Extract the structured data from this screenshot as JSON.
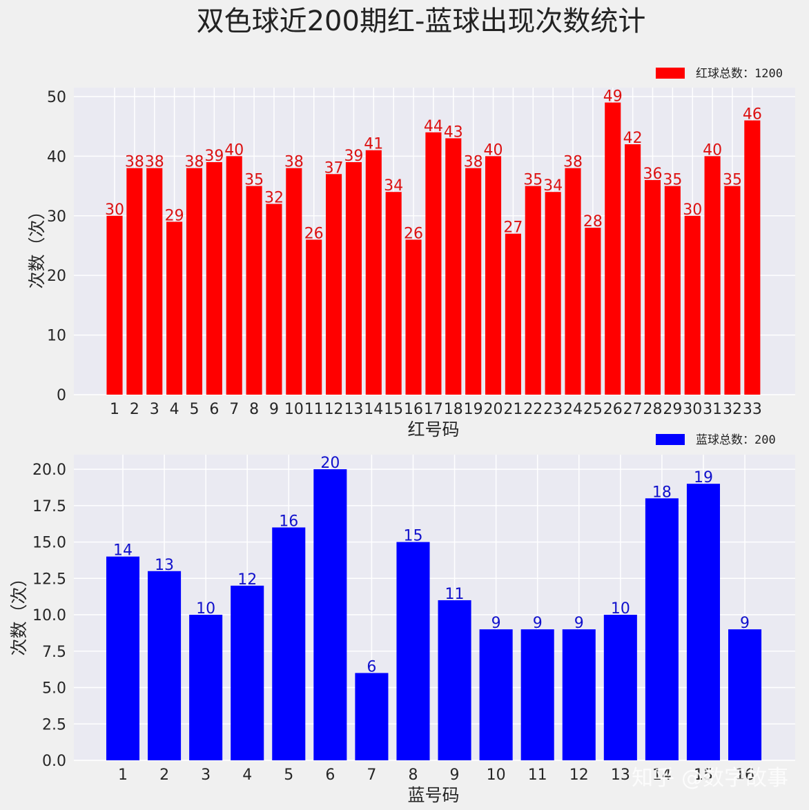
{
  "title": "双色球近200期红-蓝球出现次数统计",
  "watermark": "知乎 @数字故事",
  "chart_data": [
    {
      "type": "bar",
      "xlabel": "红号码",
      "ylabel": "次数（次）",
      "legend": {
        "label": "红球总数：1200",
        "position": "top-right"
      },
      "color": "#ff0000",
      "label_color": "#dd1111",
      "categories": [
        "1",
        "2",
        "3",
        "4",
        "5",
        "6",
        "7",
        "8",
        "9",
        "10",
        "11",
        "12",
        "13",
        "14",
        "15",
        "16",
        "17",
        "18",
        "19",
        "20",
        "21",
        "22",
        "23",
        "24",
        "25",
        "26",
        "27",
        "28",
        "29",
        "30",
        "31",
        "32",
        "33"
      ],
      "values": [
        30,
        38,
        38,
        29,
        38,
        39,
        40,
        35,
        32,
        38,
        26,
        37,
        39,
        41,
        34,
        26,
        44,
        43,
        38,
        40,
        27,
        35,
        34,
        38,
        28,
        49,
        42,
        36,
        35,
        30,
        40,
        35,
        46
      ],
      "ylim": [
        0,
        51.5
      ],
      "yticks": [
        "0",
        "10",
        "20",
        "30",
        "40",
        "50"
      ],
      "grid": true
    },
    {
      "type": "bar",
      "xlabel": "蓝号码",
      "ylabel": "次数（次）",
      "legend": {
        "label": "蓝球总数：200",
        "position": "top-right"
      },
      "color": "#0000ff",
      "label_color": "#1111cc",
      "categories": [
        "1",
        "2",
        "3",
        "4",
        "5",
        "6",
        "7",
        "8",
        "9",
        "10",
        "11",
        "12",
        "13",
        "14",
        "15",
        "16"
      ],
      "values": [
        14,
        13,
        10,
        12,
        16,
        20,
        6,
        15,
        11,
        9,
        9,
        9,
        10,
        18,
        19,
        9
      ],
      "ylim": [
        0,
        21
      ],
      "yticks": [
        "0.0",
        "2.5",
        "5.0",
        "7.5",
        "10.0",
        "12.5",
        "15.0",
        "17.5",
        "20.0"
      ],
      "grid": true
    }
  ]
}
